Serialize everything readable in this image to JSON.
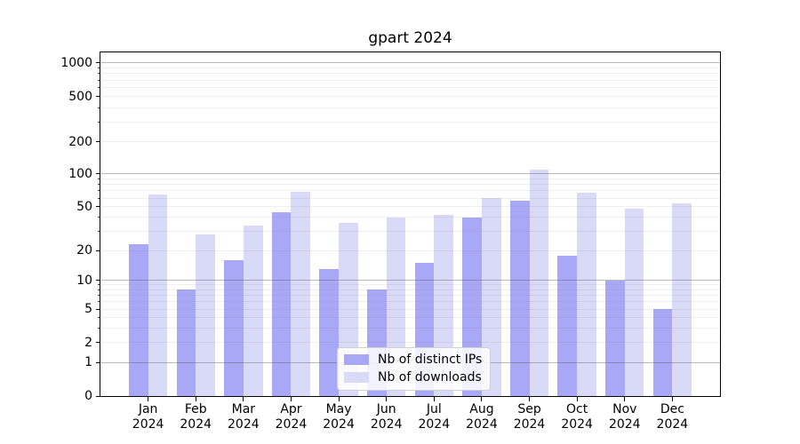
{
  "chart_data": {
    "type": "bar",
    "title": "gpart 2024",
    "categories": [
      "Jan 2024",
      "Feb 2024",
      "Mar 2024",
      "Apr 2024",
      "May 2024",
      "Jun 2024",
      "Jul 2024",
      "Aug 2024",
      "Sep 2024",
      "Oct 2024",
      "Nov 2024",
      "Dec 2024"
    ],
    "series": [
      {
        "name": "Nb of distinct IPs",
        "color": "#a8a8f6",
        "values": [
          23,
          8,
          16,
          45,
          13,
          8,
          15,
          40,
          57,
          18,
          10,
          5
        ]
      },
      {
        "name": "Nb of downloads",
        "color": "#d9d9f8",
        "values": [
          65,
          28,
          34,
          69,
          36,
          40,
          42,
          60,
          110,
          67,
          48,
          54
        ]
      }
    ],
    "y_axis": {
      "scale": "log-like with 0 baseline",
      "tick_labels": [
        "0",
        "1",
        "2",
        "5",
        "10",
        "20",
        "50",
        "100",
        "200",
        "500",
        "1000"
      ],
      "tick_values": [
        0,
        1,
        2,
        5,
        10,
        20,
        50,
        100,
        200,
        500,
        1000
      ]
    },
    "legend_position": "lower center",
    "grid": true
  },
  "colors": {
    "background": "#ffffff",
    "axis": "#000000",
    "major_grid": "#b0b0b0",
    "minor_grid": "#e9e9e9"
  }
}
